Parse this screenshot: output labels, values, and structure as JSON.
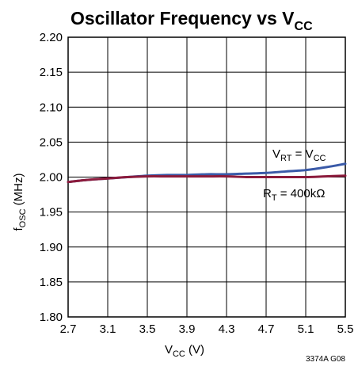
{
  "chart_data": {
    "type": "line",
    "title": {
      "main": "Oscillator Frequency vs V",
      "sub": "CC"
    },
    "xlabel": {
      "main": "V",
      "sub": "CC",
      "suffix": " (V)"
    },
    "ylabel": {
      "main": "f",
      "sub": "OSC",
      "suffix": " (MHz)"
    },
    "xlim": [
      2.7,
      5.5
    ],
    "ylim": [
      1.8,
      2.2
    ],
    "x_ticks": [
      2.7,
      3.1,
      3.5,
      3.9,
      4.3,
      4.7,
      5.1,
      5.5
    ],
    "x_tick_labels": [
      "2.7",
      "3.1",
      "3.5",
      "3.9",
      "4.3",
      "4.7",
      "5.1",
      "5.5"
    ],
    "y_ticks": [
      1.8,
      1.85,
      1.9,
      1.95,
      2.0,
      2.05,
      2.1,
      2.15,
      2.2
    ],
    "y_tick_labels": [
      "1.80",
      "1.85",
      "1.90",
      "1.95",
      "2.00",
      "2.05",
      "2.10",
      "2.15",
      "2.20"
    ],
    "grid": true,
    "series": [
      {
        "label": {
          "p1": "V",
          "s1": "RT",
          "p2": " = V",
          "s2": "CC"
        },
        "color": "#3a5aa8",
        "x": [
          2.7,
          2.9,
          3.1,
          3.3,
          3.5,
          3.7,
          3.9,
          4.1,
          4.3,
          4.5,
          4.7,
          4.9,
          5.1,
          5.3,
          5.5
        ],
        "y": [
          1.993,
          1.996,
          1.998,
          2.0,
          2.002,
          2.003,
          2.003,
          2.004,
          2.004,
          2.005,
          2.006,
          2.008,
          2.01,
          2.014,
          2.019
        ]
      },
      {
        "label": {
          "p1": "R",
          "s1": "T",
          "p2": " = 400kΩ",
          "s2": ""
        },
        "color": "#8c1b3c",
        "x": [
          2.7,
          2.9,
          3.1,
          3.3,
          3.5,
          3.7,
          3.9,
          4.1,
          4.3,
          4.5,
          4.7,
          4.9,
          5.1,
          5.3,
          5.5
        ],
        "y": [
          1.993,
          1.996,
          1.998,
          2.0,
          2.001,
          2.001,
          2.001,
          2.001,
          2.001,
          2.0,
          2.0,
          2.0,
          2.0,
          2.001,
          2.002
        ]
      }
    ],
    "figure_code": "3374A G08"
  }
}
